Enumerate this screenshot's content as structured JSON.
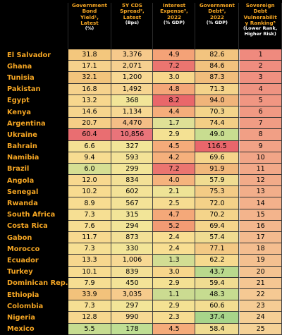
{
  "headers": [
    {
      "title": "",
      "unit": ""
    },
    {
      "title": "Government\nBond\nYield¹,\nLatest",
      "unit": "(%)"
    },
    {
      "title": "5Y CDS\nSpread²,\nLatest",
      "unit": "(Bps)"
    },
    {
      "title": "Interest\nExpense³,\n2022",
      "unit": "(% GDP)"
    },
    {
      "title": "Government\nDebt⁴,\n2022",
      "unit": "(% GDP)"
    },
    {
      "title": "Sovereign\nDebt\nVulnerabilit\ny Ranking⁵",
      "unit": "(Lower Rank,\nHigher Risk)"
    }
  ],
  "colors": {
    "background": "#000000",
    "header_text": "#f5a623",
    "country_text": "#f5a623"
  },
  "rows": [
    {
      "country": "El Salvador",
      "cells": [
        "31.8",
        "3,376",
        "4.9",
        "82.6",
        "1"
      ],
      "colors": [
        "#f3c77d",
        "#f6c98b",
        "#f4a277",
        "#f2c47f",
        "#ef8a7e"
      ]
    },
    {
      "country": "Ghana",
      "cells": [
        "17.1",
        "2,071",
        "7.2",
        "84.6",
        "2"
      ],
      "colors": [
        "#f6d28c",
        "#f6d090",
        "#eb7570",
        "#f2c27e",
        "#ef8d7f"
      ]
    },
    {
      "country": "Tunisia",
      "cells": [
        "32.1",
        "1,200",
        "3.0",
        "87.3",
        "3"
      ],
      "colors": [
        "#f2c47c",
        "#f7d893",
        "#f7d68b",
        "#f1bd7c",
        "#ef9080"
      ]
    },
    {
      "country": "Pakistan",
      "cells": [
        "16.8",
        "1,492",
        "4.8",
        "71.3",
        "4"
      ],
      "colors": [
        "#f6d28c",
        "#f6d591",
        "#f4a678",
        "#f4d38a",
        "#ef9381"
      ]
    },
    {
      "country": "Egypt",
      "cells": [
        "13.2",
        "368",
        "8.2",
        "94.0",
        "5"
      ],
      "colors": [
        "#f7d78e",
        "#f2e598",
        "#e9676a",
        "#f0b47a",
        "#f09682"
      ]
    },
    {
      "country": "Kenya",
      "cells": [
        "14.6",
        "1,134",
        "4.4",
        "70.3",
        "6"
      ],
      "colors": [
        "#f6d58d",
        "#f7d893",
        "#f5ad7b",
        "#f4d48a",
        "#f09983"
      ]
    },
    {
      "country": "Argentina",
      "cells": [
        "20.7",
        "4,470",
        "1.7",
        "74.4",
        "7"
      ],
      "colors": [
        "#f5ce87",
        "#f4be86",
        "#dfe096",
        "#f3ce85",
        "#f09c84"
      ]
    },
    {
      "country": "Ukraine",
      "cells": [
        "60.4",
        "10,856",
        "2.9",
        "49.0",
        "8"
      ],
      "colors": [
        "#e96e71",
        "#e9747a",
        "#f4e193",
        "#c8dd90",
        "#f19f85"
      ]
    },
    {
      "country": "Bahrain",
      "cells": [
        "6.6",
        "327",
        "4.5",
        "116.5",
        "9"
      ],
      "colors": [
        "#f4e094",
        "#f2e598",
        "#f5ab7a",
        "#e9666b",
        "#f1a286"
      ]
    },
    {
      "country": "Namibia",
      "cells": [
        "9.4",
        "593",
        "4.2",
        "69.6",
        "10"
      ],
      "colors": [
        "#f7dc91",
        "#f3e297",
        "#f5b07c",
        "#f5d58b",
        "#f1a587"
      ]
    },
    {
      "country": "Brazil",
      "cells": [
        "6.0",
        "299",
        "7.2",
        "91.9",
        "11"
      ],
      "colors": [
        "#d6df93",
        "#f2e598",
        "#eb7570",
        "#f1b87b",
        "#f2a888"
      ]
    },
    {
      "country": "Angola",
      "cells": [
        "12.0",
        "834",
        "4.0",
        "57.9",
        "12"
      ],
      "colors": [
        "#f7d88f",
        "#f3e096",
        "#f5b37d",
        "#f0dc91",
        "#f2ab89"
      ]
    },
    {
      "country": "Senegal",
      "cells": [
        "10.2",
        "602",
        "2.1",
        "75.3",
        "13"
      ],
      "colors": [
        "#f7db90",
        "#f3e297",
        "#eee396",
        "#f3cb85",
        "#f2ae8a"
      ]
    },
    {
      "country": "Rwanda",
      "cells": [
        "8.9",
        "567",
        "2.5",
        "72.0",
        "14"
      ],
      "colors": [
        "#f7dc91",
        "#f3e297",
        "#f6dc91",
        "#f4d188",
        "#f3b18b"
      ]
    },
    {
      "country": "South Africa",
      "cells": [
        "7.3",
        "315",
        "4.7",
        "70.2",
        "15"
      ],
      "colors": [
        "#f6df93",
        "#f2e598",
        "#f4a879",
        "#f4d48a",
        "#f3b48c"
      ]
    },
    {
      "country": "Costa Rica",
      "cells": [
        "7.6",
        "294",
        "5.2",
        "69.4",
        "16"
      ],
      "colors": [
        "#f6de92",
        "#f2e598",
        "#f29b74",
        "#f5d58b",
        "#f3b78d"
      ]
    },
    {
      "country": "Gabon",
      "cells": [
        "11.7",
        "873",
        "2.4",
        "57.4",
        "17"
      ],
      "colors": [
        "#f7d98f",
        "#f3e096",
        "#f8de92",
        "#f0dc91",
        "#f3ba8e"
      ]
    },
    {
      "country": "Morocco",
      "cells": [
        "7.3",
        "330",
        "2.4",
        "77.1",
        "18"
      ],
      "colors": [
        "#f6df93",
        "#f2e598",
        "#f8de92",
        "#f3c984",
        "#f4bd8f"
      ]
    },
    {
      "country": "Ecuador",
      "cells": [
        "13.3",
        "1,006",
        "1.3",
        "62.2",
        "19"
      ],
      "colors": [
        "#f7d78e",
        "#f7d994",
        "#d2dd93",
        "#f6da8e",
        "#f4c090"
      ]
    },
    {
      "country": "Turkey",
      "cells": [
        "10.1",
        "839",
        "3.0",
        "43.7",
        "20"
      ],
      "colors": [
        "#f7db90",
        "#f3e096",
        "#f7d68b",
        "#b9d98d",
        "#f4c391"
      ]
    },
    {
      "country": "Dominican Rep.",
      "cells": [
        "7.9",
        "450",
        "2.9",
        "59.4",
        "21"
      ],
      "colors": [
        "#f6de92",
        "#f3e397",
        "#f4e193",
        "#f0dc91",
        "#f4c692"
      ]
    },
    {
      "country": "Ethiopia",
      "cells": [
        "33.9",
        "3,035",
        "1.1",
        "48.3",
        "22"
      ],
      "colors": [
        "#f2c27b",
        "#f6cb8c",
        "#cbdb91",
        "#c6dc90",
        "#f5c993"
      ]
    },
    {
      "country": "Colombia",
      "cells": [
        "7.3",
        "297",
        "2.9",
        "60.6",
        "23"
      ],
      "colors": [
        "#f6df93",
        "#f2e598",
        "#f4e193",
        "#f3dd91",
        "#f5cc94"
      ]
    },
    {
      "country": "Nigeria",
      "cells": [
        "12.8",
        "990",
        "2.3",
        "37.4",
        "24"
      ],
      "colors": [
        "#f7d78e",
        "#f7d994",
        "#f6dc91",
        "#a8d58a",
        "#f5cf95"
      ]
    },
    {
      "country": "Mexico",
      "cells": [
        "5.5",
        "178",
        "4.5",
        "58.4",
        "25"
      ],
      "colors": [
        "#c6dc90",
        "#bfde93",
        "#f5ab7a",
        "#f0dc91",
        "#f5d296"
      ]
    }
  ]
}
